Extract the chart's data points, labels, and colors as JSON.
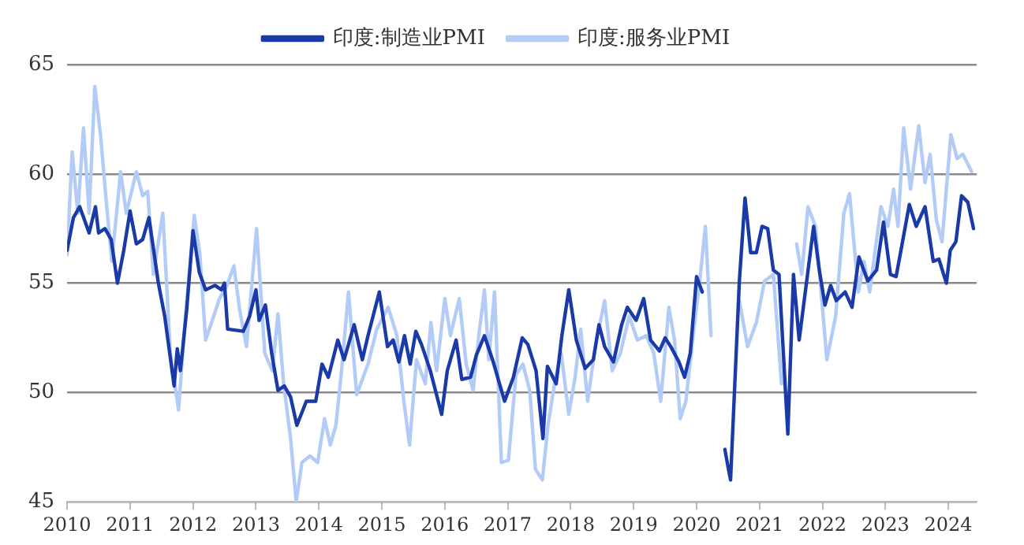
{
  "chart_data": {
    "type": "line",
    "xlim": [
      2010,
      2024.45
    ],
    "xticks": [
      2010,
      2011,
      2012,
      2013,
      2014,
      2015,
      2016,
      2017,
      2018,
      2019,
      2020,
      2021,
      2022,
      2023,
      2024
    ],
    "ylim": [
      45,
      65
    ],
    "yticks": [
      45,
      50,
      55,
      60,
      65
    ],
    "grid": "y",
    "legend": "top",
    "marker": "none",
    "line_style": "solid",
    "series": [
      {
        "name": "印度:制造业PMI",
        "color": "#1a3aa8",
        "x": [
          2010.0,
          2010.1,
          2010.2,
          2010.35,
          2010.45,
          2010.5,
          2010.6,
          2010.7,
          2010.8,
          2010.9,
          2011.0,
          2011.1,
          2011.2,
          2011.3,
          2011.45,
          2011.55,
          2011.7,
          2011.75,
          2011.8,
          2011.9,
          2012.0,
          2012.1,
          2012.2,
          2012.35,
          2012.45,
          2012.5,
          2012.55,
          2012.8,
          2012.9,
          2013.0,
          2013.05,
          2013.15,
          2013.25,
          2013.35,
          2013.45,
          2013.55,
          2013.65,
          2013.8,
          2013.95,
          2014.05,
          2014.15,
          2014.3,
          2014.4,
          2014.56,
          2014.69,
          2014.78,
          2014.96,
          2015.09,
          2015.18,
          2015.27,
          2015.36,
          2015.45,
          2015.54,
          2015.63,
          2015.77,
          2015.95,
          2016.04,
          2016.18,
          2016.27,
          2016.41,
          2016.5,
          2016.63,
          2016.77,
          2016.95,
          2017.09,
          2017.23,
          2017.32,
          2017.45,
          2017.56,
          2017.63,
          2017.77,
          2017.86,
          2017.97,
          2018.09,
          2018.23,
          2018.36,
          2018.45,
          2018.54,
          2018.68,
          2018.81,
          2018.9,
          2019.04,
          2019.16,
          2019.27,
          2019.41,
          2019.5,
          2019.59,
          2019.72,
          2019.81,
          2019.9,
          2020.0,
          2020.09,
          2020.22,
          2020.31,
          2020.4,
          2020.45,
          2020.5,
          2020.54,
          2020.68,
          2020.77,
          2020.86,
          2020.95,
          2021.04,
          2021.13,
          2021.22,
          2021.31,
          2021.45,
          2021.54,
          2021.63,
          2021.86,
          2021.95,
          2022.04,
          2022.13,
          2022.22,
          2022.36,
          2022.47,
          2022.58,
          2022.72,
          2022.86,
          2022.97,
          2023.08,
          2023.17,
          2023.26,
          2023.38,
          2023.49,
          2023.63,
          2023.76,
          2023.85,
          2023.97,
          2024.03,
          2024.12,
          2024.21,
          2024.31,
          2024.4
        ],
        "values": [
          56.5,
          58.0,
          58.5,
          57.3,
          58.5,
          57.3,
          57.5,
          57.0,
          55.0,
          56.5,
          58.3,
          56.8,
          57.0,
          58.0,
          55.0,
          53.5,
          50.3,
          52.0,
          51.0,
          53.8,
          57.4,
          55.5,
          54.7,
          54.9,
          54.7,
          55.0,
          52.9,
          52.8,
          53.5,
          54.7,
          53.3,
          54.0,
          51.8,
          50.1,
          50.3,
          49.8,
          48.5,
          49.6,
          49.6,
          51.3,
          50.7,
          52.4,
          51.5,
          53.1,
          51.5,
          52.6,
          54.6,
          52.1,
          52.4,
          51.4,
          52.6,
          51.3,
          52.8,
          52.2,
          51.0,
          49.0,
          51.0,
          52.4,
          50.6,
          50.7,
          51.7,
          52.6,
          51.4,
          49.6,
          50.7,
          52.5,
          52.2,
          51.0,
          47.9,
          51.2,
          50.4,
          52.6,
          54.7,
          52.4,
          51.1,
          51.5,
          53.1,
          52.1,
          51.4,
          53.1,
          53.9,
          53.3,
          54.3,
          52.4,
          51.9,
          52.5,
          52.1,
          51.4,
          50.7,
          51.8,
          55.3,
          54.6,
          null,
          null,
          null,
          47.4,
          46.6,
          46.0,
          55.1,
          58.9,
          56.4,
          56.4,
          57.6,
          57.5,
          55.6,
          55.4,
          48.1,
          55.4,
          52.4,
          57.6,
          55.6,
          54.0,
          54.9,
          54.2,
          54.6,
          53.9,
          56.2,
          55.1,
          55.6,
          57.8,
          55.4,
          55.3,
          56.7,
          58.6,
          57.6,
          58.5,
          56.0,
          56.1,
          55.0,
          56.5,
          56.9,
          59.0,
          58.7,
          57.5
        ]
      },
      {
        "name": "印度:服务业PMI",
        "color": "#b3cbf7",
        "x": [
          2010.0,
          2010.08,
          2010.17,
          2010.26,
          2010.35,
          2010.44,
          2010.53,
          2010.62,
          2010.71,
          2010.85,
          2010.94,
          2011.1,
          2011.2,
          2011.28,
          2011.37,
          2011.52,
          2011.64,
          2011.77,
          2011.88,
          2012.02,
          2012.11,
          2012.2,
          2012.33,
          2012.42,
          2012.54,
          2012.65,
          2012.74,
          2012.85,
          2013.01,
          2013.14,
          2013.26,
          2013.35,
          2013.44,
          2013.55,
          2013.64,
          2013.73,
          2013.86,
          2013.98,
          2014.09,
          2014.18,
          2014.27,
          2014.36,
          2014.47,
          2014.6,
          2014.78,
          2014.92,
          2015.1,
          2015.24,
          2015.35,
          2015.44,
          2015.55,
          2015.69,
          2015.78,
          2015.87,
          2016.0,
          2016.09,
          2016.23,
          2016.34,
          2016.45,
          2016.54,
          2016.63,
          2016.7,
          2016.79,
          2016.9,
          2017.01,
          2017.13,
          2017.24,
          2017.35,
          2017.44,
          2017.55,
          2017.64,
          2017.76,
          2017.85,
          2017.97,
          2018.07,
          2018.16,
          2018.27,
          2018.39,
          2018.54,
          2018.66,
          2018.79,
          2018.93,
          2019.06,
          2019.2,
          2019.32,
          2019.43,
          2019.56,
          2019.65,
          2019.74,
          2019.83,
          2019.97,
          2020.05,
          2020.14,
          2020.23,
          2020.3,
          2020.4,
          2020.5,
          2020.68,
          2020.81,
          2020.95,
          2021.08,
          2021.22,
          2021.35,
          2021.4,
          2021.5,
          2021.59,
          2021.67,
          2021.77,
          2021.89,
          2022.07,
          2022.21,
          2022.34,
          2022.43,
          2022.57,
          2022.66,
          2022.75,
          2022.93,
          2023.04,
          2023.13,
          2023.2,
          2023.29,
          2023.4,
          2023.53,
          2023.63,
          2023.71,
          2023.81,
          2023.9,
          2024.04,
          2024.14,
          2024.23,
          2024.37
        ],
        "values": [
          56.3,
          61.0,
          58.2,
          62.1,
          58.2,
          64.0,
          61.8,
          58.8,
          56.0,
          60.1,
          58.2,
          60.1,
          59.0,
          59.2,
          55.4,
          58.2,
          51.8,
          49.2,
          53.5,
          58.1,
          56.3,
          52.4,
          53.5,
          54.3,
          54.9,
          55.8,
          53.8,
          52.1,
          57.5,
          51.8,
          51.0,
          53.6,
          50.4,
          47.9,
          45.0,
          46.8,
          47.1,
          46.8,
          48.8,
          47.6,
          48.5,
          51.0,
          54.6,
          49.9,
          51.3,
          52.9,
          53.9,
          52.6,
          49.6,
          47.6,
          51.5,
          50.4,
          53.2,
          51.0,
          54.3,
          52.6,
          54.3,
          51.3,
          50.1,
          52.6,
          54.7,
          51.5,
          54.6,
          46.8,
          46.9,
          50.8,
          51.3,
          50.1,
          46.5,
          46.0,
          48.5,
          50.7,
          51.8,
          49.0,
          50.7,
          52.9,
          49.6,
          52.1,
          54.2,
          51.0,
          51.8,
          53.5,
          52.4,
          52.6,
          51.8,
          49.6,
          53.9,
          52.4,
          48.8,
          49.6,
          53.2,
          55.1,
          57.6,
          52.6,
          null,
          null,
          null,
          54.2,
          52.1,
          53.2,
          55.1,
          55.4,
          50.4,
          null,
          null,
          56.8,
          55.4,
          58.5,
          57.6,
          51.5,
          53.5,
          58.2,
          59.1,
          54.6,
          56.0,
          54.6,
          58.5,
          57.6,
          59.3,
          57.6,
          62.1,
          59.3,
          62.2,
          59.6,
          60.9,
          57.9,
          56.9,
          61.8,
          60.7,
          60.9,
          60.1
        ]
      }
    ]
  }
}
